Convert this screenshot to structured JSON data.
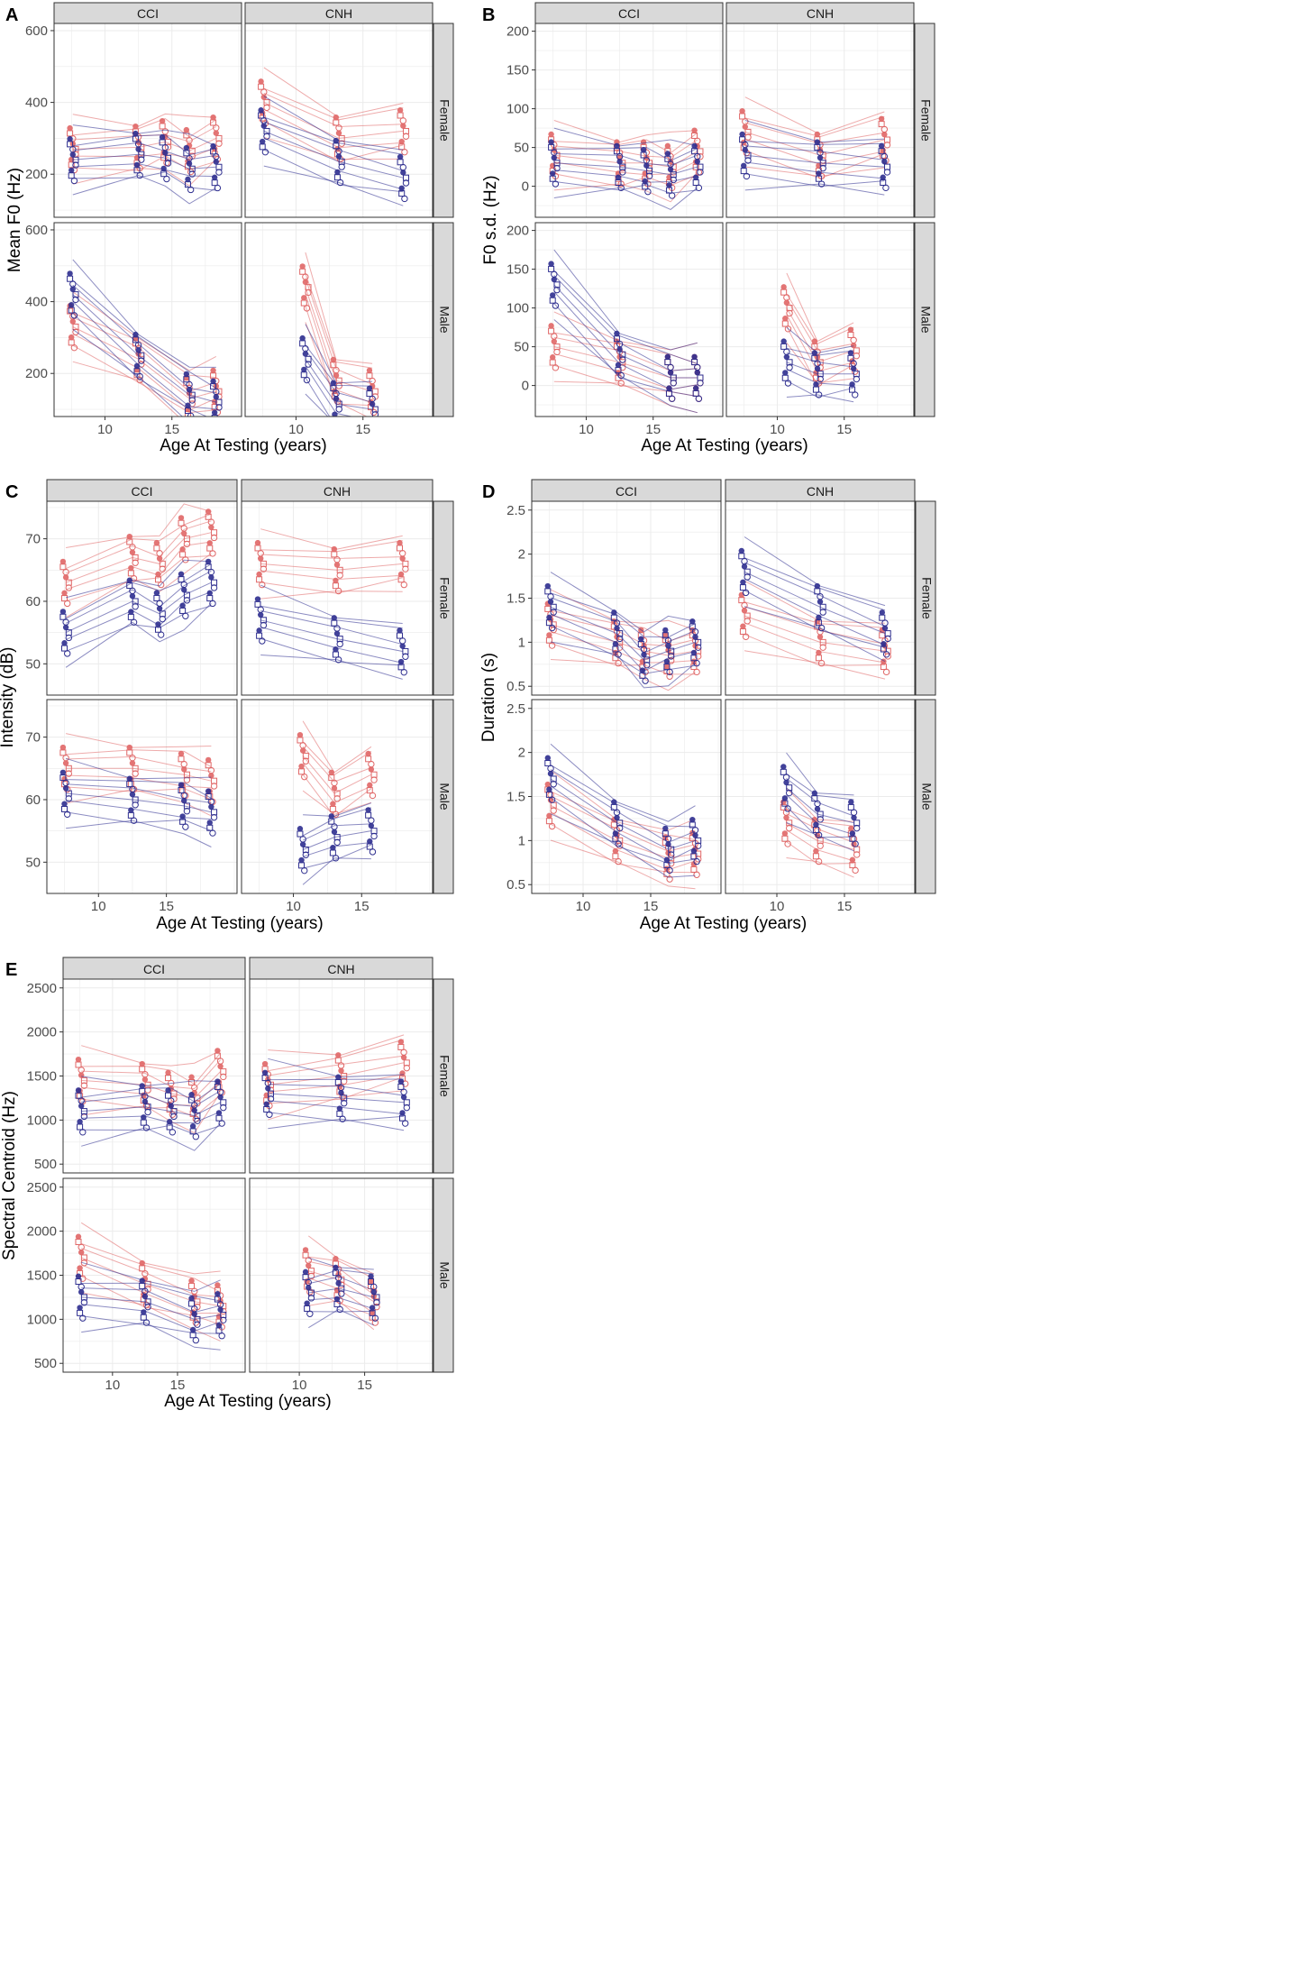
{
  "figure": {
    "x_axis_title": "Age At Testing (years)",
    "group_labels": [
      "CCI",
      "CNH"
    ],
    "sex_labels": [
      "Female",
      "Male"
    ],
    "colors": {
      "series_a": "#e06666",
      "series_b": "#2e2e8f",
      "strip_bg": "#d9d9d9",
      "grid": "#ebebeb"
    }
  },
  "chart_data": [
    {
      "type": "scatter",
      "panel_label": "A",
      "ylabel": "Mean F0 (Hz)",
      "xlim": [
        6.2,
        20.2
      ],
      "ylim": [
        80,
        620
      ],
      "x_ticks": [
        10,
        15
      ],
      "y_ticks": [
        200,
        400,
        600
      ],
      "facets": [
        {
          "group": "CCI",
          "sex": "Female",
          "series": [
            {
              "name": "red",
              "x": [
                7.6,
                12.5,
                14.5,
                16.3,
                18.3
              ],
              "y": [
                270,
                275,
                290,
                265,
                300
              ]
            },
            {
              "name": "blue",
              "x": [
                7.6,
                12.5,
                14.5,
                16.3,
                18.3
              ],
              "y": [
                240,
                255,
                245,
                215,
                220
              ]
            }
          ]
        },
        {
          "group": "CNH",
          "sex": "Female",
          "series": [
            {
              "name": "red",
              "x": [
                7.6,
                13.2,
                18.0
              ],
              "y": [
                400,
                300,
                320
              ]
            },
            {
              "name": "blue",
              "x": [
                7.6,
                13.2,
                18.0
              ],
              "y": [
                320,
                235,
                190
              ]
            }
          ]
        },
        {
          "group": "CCI",
          "sex": "Male",
          "series": [
            {
              "name": "red",
              "x": [
                7.6,
                12.5,
                16.3,
                18.3
              ],
              "y": [
                330,
                240,
                130,
                150
              ]
            },
            {
              "name": "blue",
              "x": [
                7.6,
                12.5,
                16.3,
                18.3
              ],
              "y": [
                420,
                250,
                140,
                120
              ]
            }
          ]
        },
        {
          "group": "CNH",
          "sex": "Male",
          "series": [
            {
              "name": "red",
              "x": [
                10.7,
                13.0,
                15.7
              ],
              "y": [
                440,
                180,
                150
              ]
            },
            {
              "name": "blue",
              "x": [
                10.7,
                13.0,
                15.7
              ],
              "y": [
                240,
                115,
                100
              ]
            }
          ]
        }
      ]
    },
    {
      "type": "scatter",
      "panel_label": "B",
      "ylabel": "F0 s.d. (Hz)",
      "xlim": [
        6.2,
        20.2
      ],
      "ylim": [
        -40,
        210
      ],
      "x_ticks": [
        10,
        15
      ],
      "y_ticks": [
        0,
        50,
        100,
        150,
        200
      ],
      "facets": [
        {
          "group": "CCI",
          "sex": "Female",
          "series": [
            {
              "name": "red",
              "x": [
                7.6,
                12.5,
                14.5,
                16.3,
                18.3
              ],
              "y": [
                40,
                30,
                30,
                25,
                45
              ]
            },
            {
              "name": "blue",
              "x": [
                7.6,
                12.5,
                14.5,
                16.3,
                18.3
              ],
              "y": [
                30,
                25,
                20,
                15,
                25
              ]
            }
          ]
        },
        {
          "group": "CNH",
          "sex": "Female",
          "series": [
            {
              "name": "red",
              "x": [
                7.6,
                13.2,
                18.0
              ],
              "y": [
                70,
                40,
                60
              ]
            },
            {
              "name": "blue",
              "x": [
                7.6,
                13.2,
                18.0
              ],
              "y": [
                40,
                30,
                25
              ]
            }
          ]
        },
        {
          "group": "CCI",
          "sex": "Male",
          "series": [
            {
              "name": "red",
              "x": [
                7.6,
                12.5,
                16.3,
                18.3
              ],
              "y": [
                50,
                30,
                10,
                10
              ]
            },
            {
              "name": "blue",
              "x": [
                7.6,
                12.5,
                16.3,
                18.3
              ],
              "y": [
                130,
                40,
                10,
                10
              ]
            }
          ]
        },
        {
          "group": "CNH",
          "sex": "Male",
          "series": [
            {
              "name": "red",
              "x": [
                10.7,
                13.0,
                15.7
              ],
              "y": [
                100,
                30,
                45
              ]
            },
            {
              "name": "blue",
              "x": [
                10.7,
                13.0,
                15.7
              ],
              "y": [
                30,
                15,
                15
              ]
            }
          ]
        }
      ]
    },
    {
      "type": "scatter",
      "panel_label": "C",
      "ylabel": "Intensity (dB)",
      "xlim": [
        6.2,
        20.2
      ],
      "ylim": [
        45,
        76
      ],
      "x_ticks": [
        10,
        15
      ],
      "y_ticks": [
        50,
        60,
        70
      ],
      "facets": [
        {
          "group": "CCI",
          "sex": "Female",
          "series": [
            {
              "name": "red",
              "x": [
                7.6,
                12.5,
                14.5,
                16.3,
                18.3
              ],
              "y": [
                63,
                67,
                66,
                70,
                71
              ]
            },
            {
              "name": "blue",
              "x": [
                7.6,
                12.5,
                14.5,
                16.3,
                18.3
              ],
              "y": [
                55,
                60,
                58,
                61,
                63
              ]
            }
          ]
        },
        {
          "group": "CNH",
          "sex": "Female",
          "series": [
            {
              "name": "red",
              "x": [
                7.6,
                13.2,
                18.0
              ],
              "y": [
                66,
                65,
                66
              ]
            },
            {
              "name": "blue",
              "x": [
                7.6,
                13.2,
                18.0
              ],
              "y": [
                57,
                54,
                52
              ]
            }
          ]
        },
        {
          "group": "CCI",
          "sex": "Male",
          "series": [
            {
              "name": "red",
              "x": [
                7.6,
                12.5,
                16.3,
                18.3
              ],
              "y": [
                65,
                65,
                64,
                63
              ]
            },
            {
              "name": "blue",
              "x": [
                7.6,
                12.5,
                16.3,
                18.3
              ],
              "y": [
                61,
                60,
                59,
                58
              ]
            }
          ]
        },
        {
          "group": "CNH",
          "sex": "Male",
          "series": [
            {
              "name": "red",
              "x": [
                10.7,
                13.0,
                15.7
              ],
              "y": [
                67,
                61,
                64
              ]
            },
            {
              "name": "blue",
              "x": [
                10.7,
                13.0,
                15.7
              ],
              "y": [
                52,
                54,
                55
              ]
            }
          ]
        }
      ]
    },
    {
      "type": "scatter",
      "panel_label": "D",
      "ylabel": "Duration (s)",
      "xlim": [
        6.2,
        20.2
      ],
      "ylim": [
        0.4,
        2.6
      ],
      "x_ticks": [
        10,
        15
      ],
      "y_ticks": [
        0.5,
        1.0,
        1.5,
        2.0,
        2.5
      ],
      "facets": [
        {
          "group": "CCI",
          "sex": "Female",
          "series": [
            {
              "name": "red",
              "x": [
                7.6,
                12.5,
                14.5,
                16.3,
                18.3
              ],
              "y": [
                1.2,
                1.0,
                0.9,
                0.85,
                0.9
              ]
            },
            {
              "name": "blue",
              "x": [
                7.6,
                12.5,
                14.5,
                16.3,
                18.3
              ],
              "y": [
                1.4,
                1.1,
                0.8,
                0.9,
                1.0
              ]
            }
          ]
        },
        {
          "group": "CNH",
          "sex": "Female",
          "series": [
            {
              "name": "red",
              "x": [
                7.6,
                13.2,
                18.0
              ],
              "y": [
                1.3,
                1.0,
                0.9
              ]
            },
            {
              "name": "blue",
              "x": [
                7.6,
                13.2,
                18.0
              ],
              "y": [
                1.8,
                1.4,
                1.1
              ]
            }
          ]
        },
        {
          "group": "CCI",
          "sex": "Male",
          "series": [
            {
              "name": "red",
              "x": [
                7.6,
                12.5,
                16.3,
                18.3
              ],
              "y": [
                1.4,
                1.0,
                0.8,
                0.85
              ]
            },
            {
              "name": "blue",
              "x": [
                7.6,
                12.5,
                16.3,
                18.3
              ],
              "y": [
                1.7,
                1.2,
                0.9,
                1.0
              ]
            }
          ]
        },
        {
          "group": "CNH",
          "sex": "Male",
          "series": [
            {
              "name": "red",
              "x": [
                10.7,
                13.0,
                15.7
              ],
              "y": [
                1.2,
                1.0,
                0.9
              ]
            },
            {
              "name": "blue",
              "x": [
                10.7,
                13.0,
                15.7
              ],
              "y": [
                1.6,
                1.3,
                1.2
              ]
            }
          ]
        }
      ]
    },
    {
      "type": "scatter",
      "panel_label": "E",
      "ylabel": "Spectral Centroid (Hz)",
      "xlim": [
        6.2,
        20.2
      ],
      "ylim": [
        400,
        2600
      ],
      "x_ticks": [
        10,
        15
      ],
      "y_ticks": [
        500,
        1000,
        1500,
        2000,
        2500
      ],
      "facets": [
        {
          "group": "CCI",
          "sex": "Female",
          "series": [
            {
              "name": "red",
              "x": [
                7.6,
                12.5,
                14.5,
                16.3,
                18.3
              ],
              "y": [
                1450,
                1400,
                1300,
                1250,
                1550
              ]
            },
            {
              "name": "blue",
              "x": [
                7.6,
                12.5,
                14.5,
                16.3,
                18.3
              ],
              "y": [
                1100,
                1150,
                1100,
                1050,
                1200
              ]
            }
          ]
        },
        {
          "group": "CNH",
          "sex": "Female",
          "series": [
            {
              "name": "red",
              "x": [
                7.6,
                13.2,
                18.0
              ],
              "y": [
                1400,
                1500,
                1650
              ]
            },
            {
              "name": "blue",
              "x": [
                7.6,
                13.2,
                18.0
              ],
              "y": [
                1300,
                1250,
                1200
              ]
            }
          ]
        },
        {
          "group": "CCI",
          "sex": "Male",
          "series": [
            {
              "name": "red",
              "x": [
                7.6,
                12.5,
                16.3,
                18.3
              ],
              "y": [
                1700,
                1400,
                1200,
                1150
              ]
            },
            {
              "name": "blue",
              "x": [
                7.6,
                12.5,
                16.3,
                18.3
              ],
              "y": [
                1250,
                1200,
                1000,
                1050
              ]
            }
          ]
        },
        {
          "group": "CNH",
          "sex": "Male",
          "series": [
            {
              "name": "red",
              "x": [
                10.7,
                13.0,
                15.7
              ],
              "y": [
                1550,
                1450,
                1200
              ]
            },
            {
              "name": "blue",
              "x": [
                10.7,
                13.0,
                15.7
              ],
              "y": [
                1300,
                1350,
                1250
              ]
            }
          ]
        }
      ]
    }
  ]
}
